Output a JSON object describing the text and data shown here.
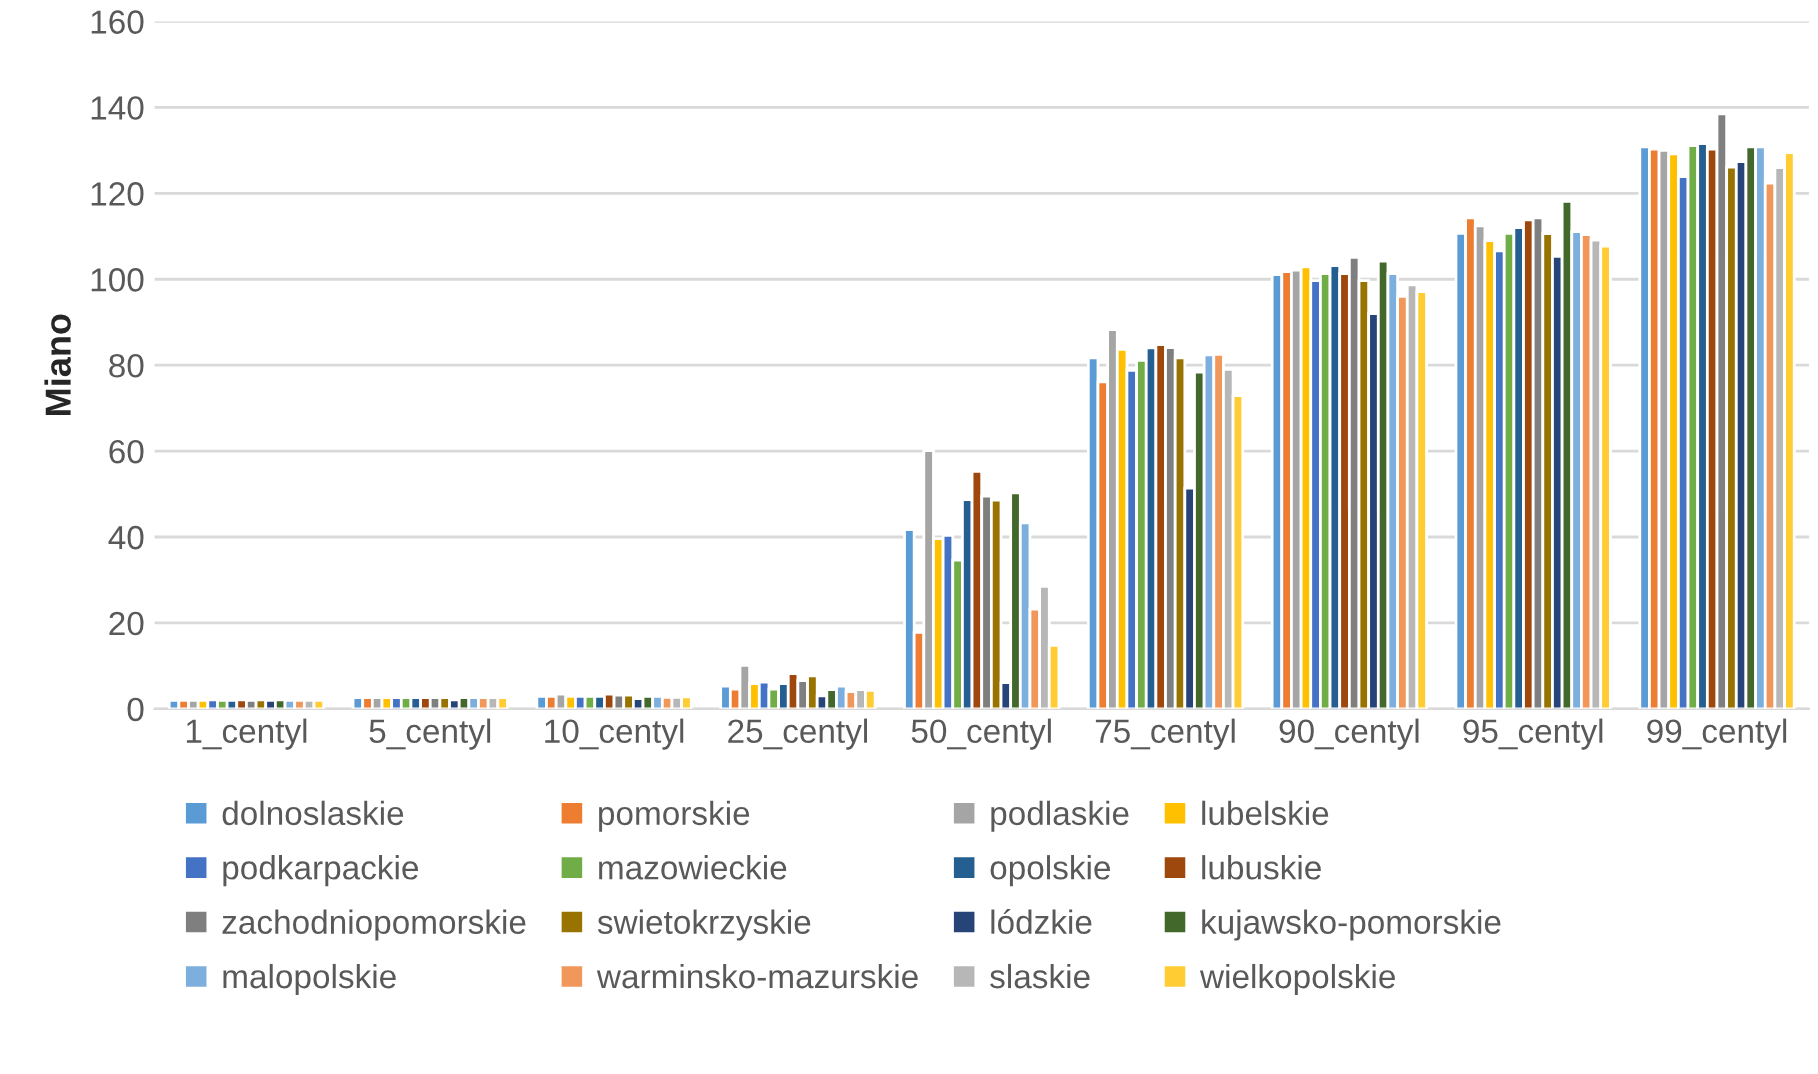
{
  "chart_data": {
    "type": "bar",
    "ylabel": "Miano",
    "categories": [
      "1_centyl",
      "5_centyl",
      "10_centyl",
      "25_centyl",
      "50_centyl",
      "75_centyl",
      "90_centyl",
      "95_centyl",
      "99_centyl"
    ],
    "ylim": [
      0,
      160
    ],
    "yticks": [
      0,
      20,
      40,
      60,
      80,
      100,
      120,
      140,
      160
    ],
    "grid": "y",
    "legend": "bottom",
    "series": [
      {
        "name": "dolnoslaskie",
        "color": "#5b9bd5",
        "values": [
          2.0,
          2.6,
          2.9,
          5.3,
          41.7,
          81.7,
          101.1,
          110.7,
          130.8
        ]
      },
      {
        "name": "pomorskie",
        "color": "#ed7d31",
        "values": [
          2.0,
          2.6,
          2.9,
          4.6,
          17.8,
          76.1,
          101.8,
          114.3,
          130.3
        ]
      },
      {
        "name": "podlaskie",
        "color": "#a5a5a5",
        "values": [
          2.0,
          2.6,
          3.4,
          10.1,
          60.1,
          88.3,
          102.1,
          112.4,
          130.0
        ]
      },
      {
        "name": "lubelskie",
        "color": "#ffc000",
        "values": [
          2.0,
          2.6,
          2.9,
          5.9,
          39.6,
          83.7,
          102.9,
          109.0,
          129.2
        ]
      },
      {
        "name": "podkarpackie",
        "color": "#4472c4",
        "values": [
          2.1,
          2.6,
          2.9,
          6.2,
          40.4,
          78.8,
          99.7,
          106.6,
          123.9
        ]
      },
      {
        "name": "mazowieckie",
        "color": "#70ad47",
        "values": [
          2.0,
          2.6,
          2.9,
          4.6,
          34.6,
          81.1,
          101.3,
          110.7,
          131.1
        ]
      },
      {
        "name": "opolskie",
        "color": "#255e91",
        "values": [
          2.0,
          2.6,
          2.9,
          5.9,
          48.7,
          84.0,
          103.2,
          112.0,
          131.6
        ]
      },
      {
        "name": "lubuskie",
        "color": "#9e480e",
        "values": [
          2.1,
          2.6,
          3.4,
          8.2,
          55.3,
          84.8,
          101.3,
          113.8,
          130.3
        ]
      },
      {
        "name": "zachodniopomorskie",
        "color": "#7f7f7f",
        "values": [
          2.0,
          2.6,
          3.2,
          6.6,
          49.5,
          84.1,
          105.1,
          114.3,
          138.5
        ]
      },
      {
        "name": "swietokrzyskie",
        "color": "#997300",
        "values": [
          2.1,
          2.6,
          3.2,
          7.7,
          48.6,
          81.7,
          99.7,
          110.6,
          126.1
        ]
      },
      {
        "name": "lódzkie",
        "color": "#264478",
        "values": [
          2.0,
          2.1,
          2.4,
          3.0,
          6.1,
          51.4,
          92.0,
          105.3,
          127.4
        ]
      },
      {
        "name": "kujawsko-pomorskie",
        "color": "#43682b",
        "values": [
          2.1,
          2.6,
          2.9,
          4.5,
          50.3,
          78.4,
          104.2,
          118.1,
          130.8
        ]
      },
      {
        "name": "malopolskie",
        "color": "#7cafdd",
        "values": [
          2.0,
          2.6,
          2.9,
          5.3,
          43.3,
          82.4,
          101.3,
          111.1,
          130.8
        ]
      },
      {
        "name": "warminsko-mazurskie",
        "color": "#f1975a",
        "values": [
          2.0,
          2.6,
          2.7,
          4.0,
          23.2,
          82.5,
          96.0,
          110.4,
          122.4
        ]
      },
      {
        "name": "slaskie",
        "color": "#b7b7b7",
        "values": [
          2.0,
          2.6,
          2.7,
          4.5,
          28.5,
          79.0,
          98.7,
          109.1,
          126.0
        ]
      },
      {
        "name": "wielkopolskie",
        "color": "#ffcd33",
        "values": [
          2.0,
          2.6,
          2.8,
          4.3,
          14.8,
          72.9,
          97.1,
          107.7,
          129.5
        ]
      }
    ]
  }
}
